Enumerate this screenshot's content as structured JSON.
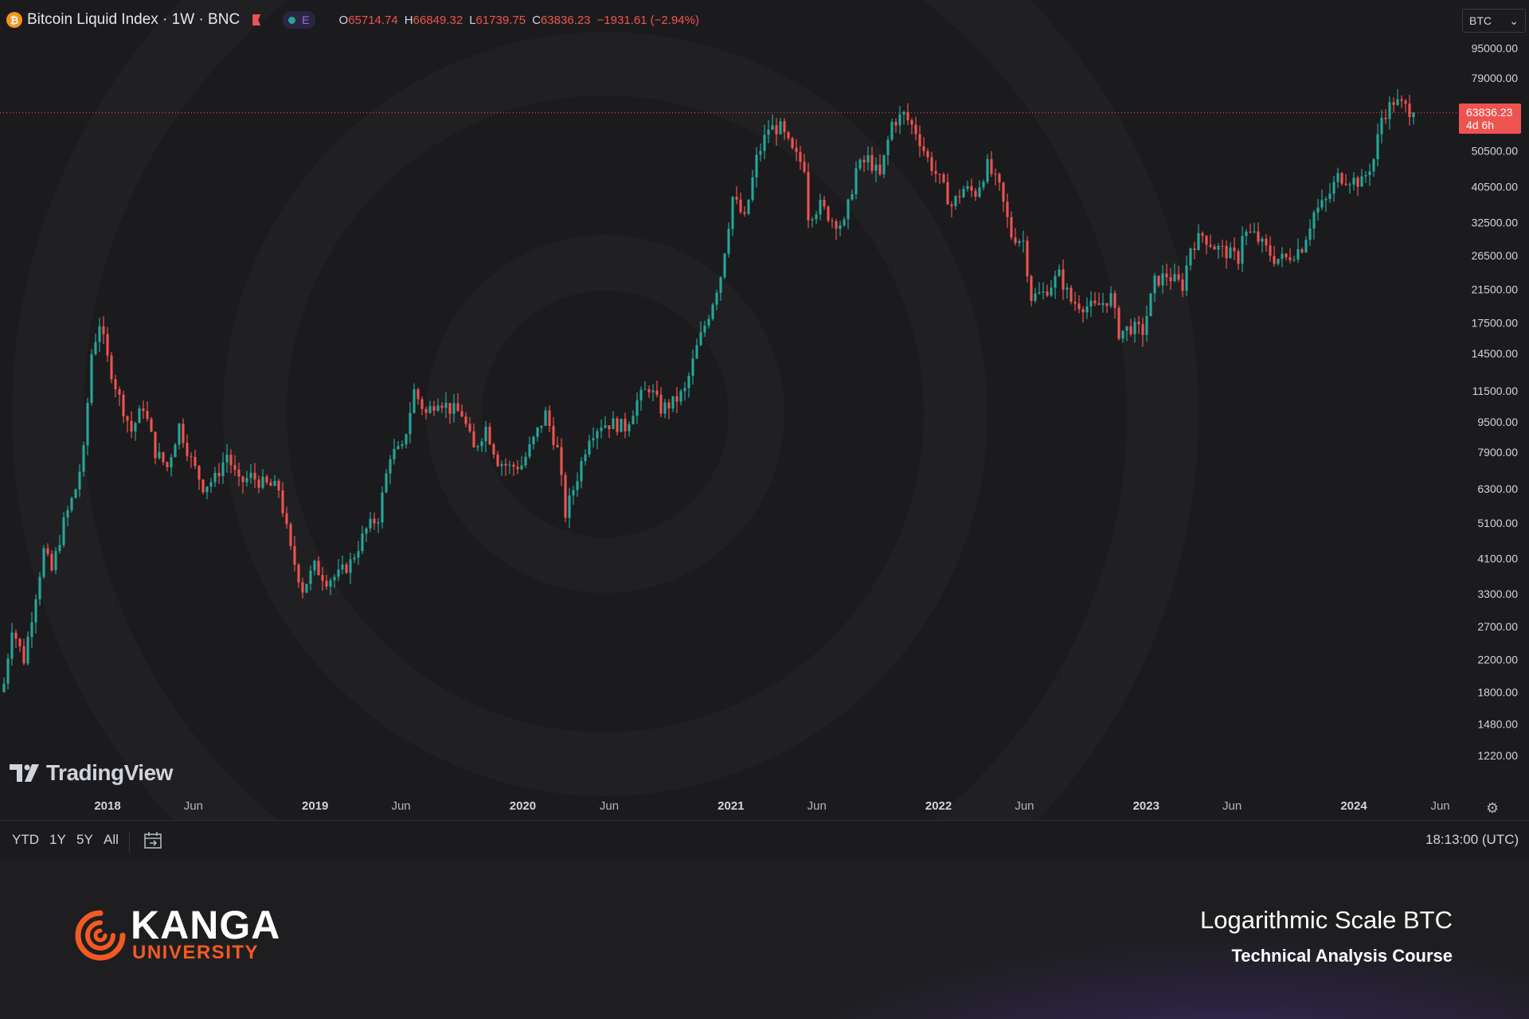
{
  "header": {
    "symbol_title": "Bitcoin Liquid Index · 1W · BNC",
    "coin_glyph": "₿",
    "indicator_label": "E",
    "ohlc": [
      {
        "key": "O",
        "value": "65714.74"
      },
      {
        "key": "H",
        "value": "66849.32"
      },
      {
        "key": "L",
        "value": "61739.75"
      },
      {
        "key": "C",
        "value": "63836.23"
      },
      {
        "key": "",
        "value": "−1931.61 (−2.94%)"
      }
    ]
  },
  "currency_select": {
    "value": "BTC",
    "arrow": "⌄"
  },
  "price_tag": {
    "price": "63836.23",
    "countdown": "4d 6h"
  },
  "watermark": {
    "text": "TradingView"
  },
  "toolbar": {
    "timeframes": [
      "YTD",
      "1Y",
      "5Y",
      "All"
    ],
    "clock": "18:13:00 (UTC)"
  },
  "footer": {
    "brand_title": "KANGA",
    "brand_subtitle": "UNIVERSITY",
    "title": "Logarithmic Scale BTC",
    "subtitle": "Technical Analysis Course"
  },
  "colors": {
    "up": "#26a69a",
    "down": "#ef5350",
    "background": "#1b1b1d",
    "accent": "#f25a22"
  },
  "chart_data": {
    "type": "candlestick",
    "scale": "log",
    "interval": "1W",
    "ylim": [
      1100,
      100000
    ],
    "y_ticks": [
      1220,
      1480,
      1800,
      2200,
      2700,
      3300,
      4100,
      5100,
      6300,
      7900,
      9500,
      11500,
      14500,
      17500,
      21500,
      26500,
      32500,
      40500,
      50500,
      79000,
      95000
    ],
    "y_tick_labels": [
      "1220.00",
      "1480.00",
      "1800.00",
      "2200.00",
      "2700.00",
      "3300.00",
      "4100.00",
      "5100.00",
      "6300.00",
      "7900.00",
      "9500.00",
      "11500.00",
      "14500.00",
      "17500.00",
      "21500.00",
      "26500.00",
      "32500.00",
      "40500.00",
      "50500.00",
      "79000.00",
      "95000.00"
    ],
    "x_labels": [
      {
        "date": "2018-01-01",
        "label": "2018",
        "kind": "year"
      },
      {
        "date": "2018-06-01",
        "label": "Jun",
        "kind": "month"
      },
      {
        "date": "2019-01-01",
        "label": "2019",
        "kind": "year"
      },
      {
        "date": "2019-06-01",
        "label": "Jun",
        "kind": "month"
      },
      {
        "date": "2020-01-01",
        "label": "2020",
        "kind": "year"
      },
      {
        "date": "2020-06-01",
        "label": "Jun",
        "kind": "month"
      },
      {
        "date": "2021-01-01",
        "label": "2021",
        "kind": "year"
      },
      {
        "date": "2021-06-01",
        "label": "Jun",
        "kind": "month"
      },
      {
        "date": "2022-01-01",
        "label": "2022",
        "kind": "year"
      },
      {
        "date": "2022-06-01",
        "label": "Jun",
        "kind": "month"
      },
      {
        "date": "2023-01-01",
        "label": "2023",
        "kind": "year"
      },
      {
        "date": "2023-06-01",
        "label": "Jun",
        "kind": "month"
      },
      {
        "date": "2024-01-01",
        "label": "2024",
        "kind": "year"
      },
      {
        "date": "2024-06-01",
        "label": "Jun",
        "kind": "month"
      }
    ],
    "last_price": 63836.23,
    "closes": [
      {
        "date": "2017-07-03",
        "close": 1900
      },
      {
        "date": "2017-07-17",
        "close": 2700
      },
      {
        "date": "2017-08-07",
        "close": 2200
      },
      {
        "date": "2017-08-28",
        "close": 3300
      },
      {
        "date": "2017-09-11",
        "close": 4300
      },
      {
        "date": "2017-09-25",
        "close": 3800
      },
      {
        "date": "2017-10-16",
        "close": 5100
      },
      {
        "date": "2017-11-06",
        "close": 6300
      },
      {
        "date": "2017-11-20",
        "close": 7900
      },
      {
        "date": "2017-12-04",
        "close": 14500
      },
      {
        "date": "2017-12-18",
        "close": 17500
      },
      {
        "date": "2018-01-01",
        "close": 14000
      },
      {
        "date": "2018-01-22",
        "close": 11000
      },
      {
        "date": "2018-02-12",
        "close": 9000
      },
      {
        "date": "2018-03-05",
        "close": 10500
      },
      {
        "date": "2018-03-26",
        "close": 7900
      },
      {
        "date": "2018-04-16",
        "close": 7200
      },
      {
        "date": "2018-05-07",
        "close": 9300
      },
      {
        "date": "2018-05-28",
        "close": 7500
      },
      {
        "date": "2018-06-18",
        "close": 6400
      },
      {
        "date": "2018-07-09",
        "close": 6700
      },
      {
        "date": "2018-07-30",
        "close": 7800
      },
      {
        "date": "2018-08-20",
        "close": 6500
      },
      {
        "date": "2018-09-10",
        "close": 6800
      },
      {
        "date": "2018-10-01",
        "close": 6500
      },
      {
        "date": "2018-10-29",
        "close": 6300
      },
      {
        "date": "2018-11-19",
        "close": 4300
      },
      {
        "date": "2018-12-10",
        "close": 3400
      },
      {
        "date": "2018-12-31",
        "close": 3900
      },
      {
        "date": "2019-01-21",
        "close": 3600
      },
      {
        "date": "2019-02-11",
        "close": 3700
      },
      {
        "date": "2019-03-04",
        "close": 4000
      },
      {
        "date": "2019-04-01",
        "close": 4900
      },
      {
        "date": "2019-04-22",
        "close": 5300
      },
      {
        "date": "2019-05-13",
        "close": 7800
      },
      {
        "date": "2019-06-03",
        "close": 8000
      },
      {
        "date": "2019-06-24",
        "close": 11500
      },
      {
        "date": "2019-07-15",
        "close": 10000
      },
      {
        "date": "2019-08-05",
        "close": 11000
      },
      {
        "date": "2019-08-26",
        "close": 10300
      },
      {
        "date": "2019-09-16",
        "close": 10000
      },
      {
        "date": "2019-10-07",
        "close": 8000
      },
      {
        "date": "2019-10-28",
        "close": 9200
      },
      {
        "date": "2019-11-18",
        "close": 7500
      },
      {
        "date": "2019-12-09",
        "close": 7200
      },
      {
        "date": "2019-12-30",
        "close": 7300
      },
      {
        "date": "2020-01-20",
        "close": 8500
      },
      {
        "date": "2020-02-10",
        "close": 10000
      },
      {
        "date": "2020-03-02",
        "close": 8000
      },
      {
        "date": "2020-03-16",
        "close": 5400
      },
      {
        "date": "2020-04-06",
        "close": 6800
      },
      {
        "date": "2020-04-27",
        "close": 8800
      },
      {
        "date": "2020-05-18",
        "close": 9400
      },
      {
        "date": "2020-06-08",
        "close": 9400
      },
      {
        "date": "2020-06-29",
        "close": 9200
      },
      {
        "date": "2020-07-20",
        "close": 10800
      },
      {
        "date": "2020-08-10",
        "close": 11800
      },
      {
        "date": "2020-08-31",
        "close": 10300
      },
      {
        "date": "2020-09-21",
        "close": 10700
      },
      {
        "date": "2020-10-12",
        "close": 11500
      },
      {
        "date": "2020-11-02",
        "close": 15000
      },
      {
        "date": "2020-11-23",
        "close": 18500
      },
      {
        "date": "2020-12-14",
        "close": 23500
      },
      {
        "date": "2021-01-04",
        "close": 38000
      },
      {
        "date": "2021-01-25",
        "close": 33000
      },
      {
        "date": "2021-02-15",
        "close": 48000
      },
      {
        "date": "2021-03-08",
        "close": 58000
      },
      {
        "date": "2021-03-29",
        "close": 58000
      },
      {
        "date": "2021-04-19",
        "close": 50000
      },
      {
        "date": "2021-05-10",
        "close": 46000
      },
      {
        "date": "2021-05-17",
        "close": 34000
      },
      {
        "date": "2021-06-07",
        "close": 36000
      },
      {
        "date": "2021-06-28",
        "close": 33000
      },
      {
        "date": "2021-07-19",
        "close": 32000
      },
      {
        "date": "2021-08-09",
        "close": 45000
      },
      {
        "date": "2021-08-30",
        "close": 48000
      },
      {
        "date": "2021-09-20",
        "close": 43000
      },
      {
        "date": "2021-10-11",
        "close": 60000
      },
      {
        "date": "2021-11-01",
        "close": 63000
      },
      {
        "date": "2021-11-22",
        "close": 57000
      },
      {
        "date": "2021-12-13",
        "close": 48000
      },
      {
        "date": "2022-01-03",
        "close": 42000
      },
      {
        "date": "2022-01-24",
        "close": 36000
      },
      {
        "date": "2022-02-14",
        "close": 40000
      },
      {
        "date": "2022-03-07",
        "close": 39000
      },
      {
        "date": "2022-03-28",
        "close": 46000
      },
      {
        "date": "2022-04-18",
        "close": 40000
      },
      {
        "date": "2022-05-09",
        "close": 30000
      },
      {
        "date": "2022-05-30",
        "close": 29000
      },
      {
        "date": "2022-06-13",
        "close": 20500
      },
      {
        "date": "2022-07-04",
        "close": 21000
      },
      {
        "date": "2022-08-01",
        "close": 23500
      },
      {
        "date": "2022-08-22",
        "close": 20000
      },
      {
        "date": "2022-09-12",
        "close": 19500
      },
      {
        "date": "2022-10-03",
        "close": 19200
      },
      {
        "date": "2022-10-31",
        "close": 20500
      },
      {
        "date": "2022-11-14",
        "close": 16500
      },
      {
        "date": "2022-12-05",
        "close": 17000
      },
      {
        "date": "2022-12-26",
        "close": 16600
      },
      {
        "date": "2023-01-16",
        "close": 22500
      },
      {
        "date": "2023-02-06",
        "close": 23500
      },
      {
        "date": "2023-03-06",
        "close": 22000
      },
      {
        "date": "2023-03-20",
        "close": 28000
      },
      {
        "date": "2023-04-10",
        "close": 30000
      },
      {
        "date": "2023-05-01",
        "close": 28000
      },
      {
        "date": "2023-05-22",
        "close": 27000
      },
      {
        "date": "2023-06-12",
        "close": 26000
      },
      {
        "date": "2023-06-19",
        "close": 30500
      },
      {
        "date": "2023-07-10",
        "close": 30000
      },
      {
        "date": "2023-08-14",
        "close": 26000
      },
      {
        "date": "2023-09-04",
        "close": 26000
      },
      {
        "date": "2023-10-02",
        "close": 28000
      },
      {
        "date": "2023-10-23",
        "close": 34500
      },
      {
        "date": "2023-11-13",
        "close": 37000
      },
      {
        "date": "2023-12-04",
        "close": 43000
      },
      {
        "date": "2023-12-25",
        "close": 42500
      },
      {
        "date": "2024-01-15",
        "close": 41500
      },
      {
        "date": "2024-02-05",
        "close": 48000
      },
      {
        "date": "2024-02-19",
        "close": 62000
      },
      {
        "date": "2024-03-11",
        "close": 68500
      },
      {
        "date": "2024-04-01",
        "close": 66000
      },
      {
        "date": "2024-04-15",
        "close": 63836.23
      }
    ]
  }
}
